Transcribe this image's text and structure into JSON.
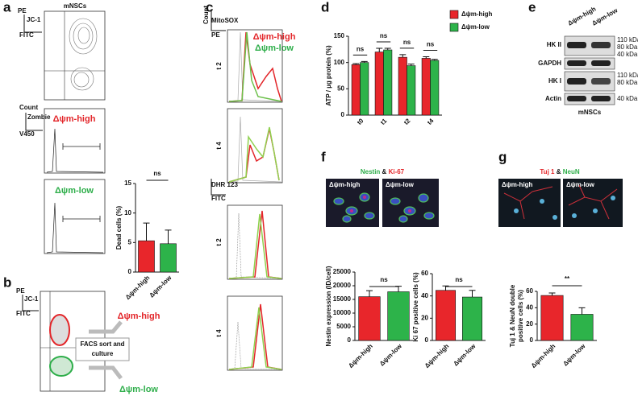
{
  "figure": {
    "letters": [
      "a",
      "b",
      "c",
      "d",
      "e",
      "f",
      "g"
    ],
    "a": {
      "title": "mNSCs",
      "channel": "JC-1",
      "y_filter": "PE",
      "x_filter": "FITC",
      "hist_y": "Count",
      "hist_stain": "Zombie",
      "hist_x": "V450",
      "gate_high": "Δψm-high",
      "gate_low": "Δψm-low"
    },
    "b": {
      "channel": "JC-1",
      "y_filter": "PE",
      "x_filter": "FITC",
      "sort_label": [
        "FACS sort and",
        "culture"
      ],
      "out_high": "Δψm-high",
      "out_low": "Δψm-low"
    },
    "c": {
      "count": "Count",
      "stain1": "MitoSOX",
      "x1": "PE",
      "legend_high": "Δψm-high",
      "legend_low": "Δψm-low",
      "rows": [
        "t 2",
        "t 4",
        "t 2",
        "t 4"
      ],
      "stain2": "DHR 123",
      "x2": "FITC"
    },
    "e": {
      "columns": [
        "Δψm-high",
        "Δψm-low"
      ],
      "rows": [
        "HK II",
        "GAPDH",
        "HK I",
        "Actin"
      ],
      "markers": [
        "110 kDa",
        "80 kDa",
        "40 kDa",
        "110 kDa",
        "80 kDa",
        "40 kDa"
      ],
      "footer": "mNSCs"
    },
    "f": {
      "stain_a": "Nestin",
      "amp": "&",
      "stain_b": "Ki-67",
      "image_labels": [
        "Δψm-high",
        "Δψm-low"
      ]
    },
    "g": {
      "stain_a": "Tuj 1",
      "amp": "&",
      "stain_b": "NeuN",
      "image_labels": [
        "Δψm-high",
        "Δψm-low"
      ]
    }
  },
  "chart_data": [
    {
      "type": "bar",
      "ylabel": "Dead cells (%)",
      "categories": [
        "Δψm-high",
        "Δψm-low"
      ],
      "values": [
        5.3,
        4.8
      ],
      "errors": [
        3.0,
        2.3
      ],
      "colors": [
        "#e8262b",
        "#2db34a"
      ],
      "ylim": [
        0,
        15
      ],
      "yticks": [
        0,
        5,
        10,
        15
      ],
      "annotations": [
        "ns"
      ]
    },
    {
      "type": "bar",
      "ylabel": "ATP / µg protein (%)",
      "categories": [
        "t0",
        "t1",
        "t2",
        "t4"
      ],
      "series": [
        {
          "name": "Δψm-high",
          "color": "#e8262b",
          "values": [
            96,
            120,
            110,
            108
          ],
          "errors": [
            2,
            7,
            5,
            3
          ]
        },
        {
          "name": "Δψm-low",
          "color": "#2db34a",
          "values": [
            100,
            124,
            94,
            104
          ],
          "errors": [
            2,
            3,
            3,
            2
          ]
        }
      ],
      "ylim": [
        0,
        150
      ],
      "yticks": [
        0,
        50,
        100,
        150
      ],
      "annotations": [
        "ns",
        "ns",
        "ns",
        "ns"
      ],
      "legend": "top-right"
    },
    {
      "type": "bar",
      "ylabel": "Nestin expression (ID/cell)",
      "categories": [
        "Δψm-high",
        "Δψm-low"
      ],
      "values": [
        16000,
        17800
      ],
      "errors": [
        2200,
        2000
      ],
      "colors": [
        "#e8262b",
        "#2db34a"
      ],
      "ylim": [
        0,
        25000
      ],
      "yticks": [
        0,
        5000,
        10000,
        15000,
        20000,
        25000
      ],
      "annotations": [
        "ns"
      ]
    },
    {
      "type": "bar",
      "ylabel": "Ki 67 positive cells (%)",
      "categories": [
        "Δψm-high",
        "Δψm-low"
      ],
      "values": [
        45,
        39
      ],
      "errors": [
        4,
        6
      ],
      "colors": [
        "#e8262b",
        "#2db34a"
      ],
      "ylim": [
        0,
        60
      ],
      "yticks": [
        0,
        20,
        40,
        60
      ],
      "annotations": [
        "ns"
      ]
    },
    {
      "type": "bar",
      "ylabel": [
        "Tuj 1 & NeuN double",
        "positive cells (%)"
      ],
      "categories": [
        "Δψm-high",
        "Δψm-low"
      ],
      "values": [
        55,
        32
      ],
      "errors": [
        3,
        8
      ],
      "colors": [
        "#e8262b",
        "#2db34a"
      ],
      "ylim": [
        0,
        60
      ],
      "yticks": [
        0,
        20,
        40,
        60
      ],
      "annotations": [
        "**"
      ]
    }
  ]
}
